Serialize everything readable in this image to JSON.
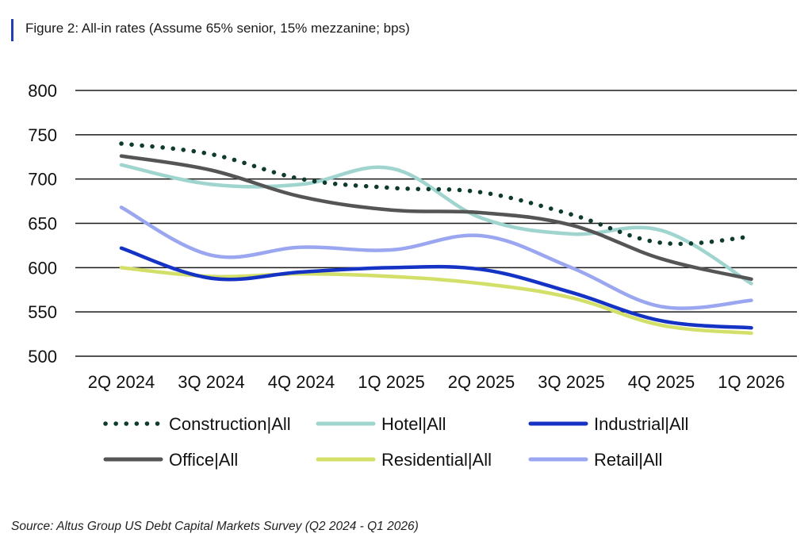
{
  "title": "Figure 2: All-in rates (Assume 65% senior, 15% mezzanine; bps)",
  "source": "Source: Altus Group US Debt Capital Markets Survey (Q2 2024 - Q1 2026)",
  "accent_color": "#1f3fb8",
  "chart_data": {
    "type": "line",
    "categories": [
      "2Q 2024",
      "3Q 2024",
      "4Q 2024",
      "1Q 2025",
      "2Q 2025",
      "3Q 2025",
      "4Q 2025",
      "1Q 2026"
    ],
    "ylim": [
      500,
      800
    ],
    "yticks": [
      800,
      750,
      700,
      650,
      600,
      550,
      500
    ],
    "grid": true,
    "legend_position": "bottom",
    "xlabel": "",
    "ylabel": "",
    "series": [
      {
        "name": "Construction|All",
        "values": [
          740,
          728,
          700,
          690,
          685,
          660,
          628,
          635
        ],
        "color": "#0e3b2e",
        "style": "dotted"
      },
      {
        "name": "Hotel|All",
        "values": [
          716,
          694,
          694,
          712,
          656,
          638,
          642,
          582
        ],
        "color": "#9fd4cf",
        "style": "solid"
      },
      {
        "name": "Industrial|All",
        "values": [
          622,
          588,
          595,
          600,
          598,
          572,
          540,
          532
        ],
        "color": "#1433c4",
        "style": "solid"
      },
      {
        "name": "Office|All",
        "values": [
          726,
          710,
          680,
          665,
          662,
          648,
          610,
          587
        ],
        "color": "#555555",
        "style": "solid"
      },
      {
        "name": "Residential|All",
        "values": [
          600,
          590,
          593,
          590,
          582,
          566,
          535,
          526
        ],
        "color": "#d2e069",
        "style": "solid"
      },
      {
        "name": "Retail|All",
        "values": [
          668,
          614,
          623,
          620,
          636,
          600,
          556,
          563
        ],
        "color": "#9aa7f0",
        "style": "solid"
      }
    ]
  }
}
